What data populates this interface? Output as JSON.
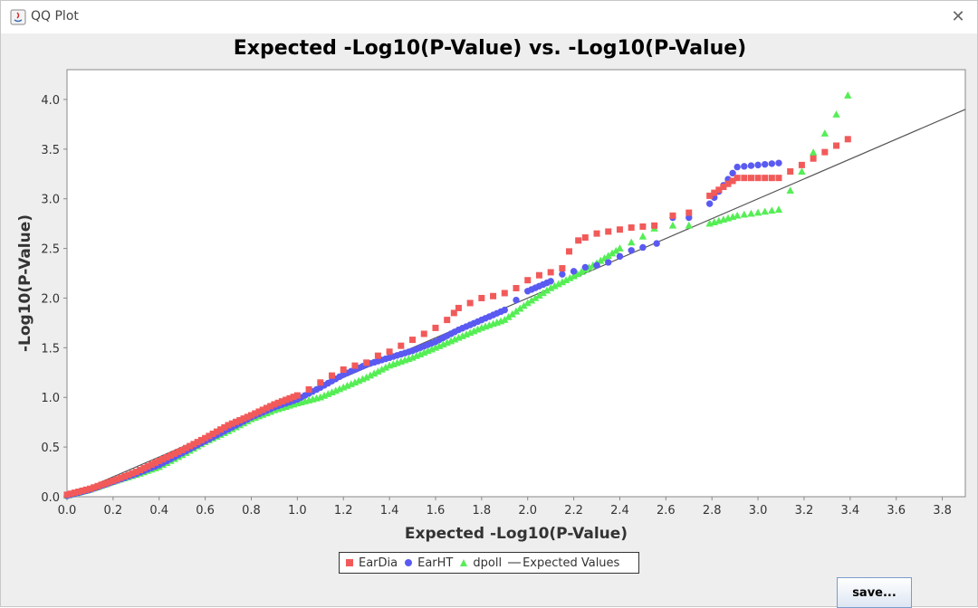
{
  "window": {
    "title": "QQ Plot",
    "close_glyph": "✕",
    "icon": "java-app-icon"
  },
  "save_button": {
    "label": "save..."
  },
  "chart_data": {
    "type": "scatter",
    "title": "Expected -Log10(P-Value) vs. -Log10(P-Value)",
    "xlabel": "Expected -Log10(P-Value)",
    "ylabel": "-Log10(P-Value)",
    "xlim": [
      0,
      3.9
    ],
    "ylim": [
      0,
      4.3
    ],
    "x_ticks": [
      "0.0",
      "0.2",
      "0.4",
      "0.6",
      "0.8",
      "1.0",
      "1.2",
      "1.4",
      "1.6",
      "1.8",
      "2.0",
      "2.2",
      "2.4",
      "2.6",
      "2.8",
      "3.0",
      "3.2",
      "3.4",
      "3.6",
      "3.8"
    ],
    "y_ticks": [
      "0.0",
      "0.5",
      "1.0",
      "1.5",
      "2.0",
      "2.5",
      "3.0",
      "3.5",
      "4.0"
    ],
    "grid": false,
    "legend_position": "bottom-center",
    "series": [
      {
        "name": "EarDia",
        "marker": "square",
        "color": "#f25a5a",
        "points": [
          [
            0,
            0.02
          ],
          [
            0.1,
            0.08
          ],
          [
            0.2,
            0.16
          ],
          [
            0.3,
            0.25
          ],
          [
            0.4,
            0.36
          ],
          [
            0.5,
            0.47
          ],
          [
            0.6,
            0.59
          ],
          [
            0.7,
            0.72
          ],
          [
            0.8,
            0.82
          ],
          [
            0.9,
            0.93
          ],
          [
            1.0,
            1.02
          ],
          [
            1.05,
            1.08
          ],
          [
            1.1,
            1.15
          ],
          [
            1.15,
            1.22
          ],
          [
            1.2,
            1.28
          ],
          [
            1.25,
            1.32
          ],
          [
            1.3,
            1.35
          ],
          [
            1.35,
            1.42
          ],
          [
            1.4,
            1.46
          ],
          [
            1.45,
            1.52
          ],
          [
            1.5,
            1.58
          ],
          [
            1.55,
            1.64
          ],
          [
            1.6,
            1.7
          ],
          [
            1.65,
            1.78
          ],
          [
            1.68,
            1.85
          ],
          [
            1.7,
            1.9
          ],
          [
            1.75,
            1.95
          ],
          [
            1.8,
            2.0
          ],
          [
            1.85,
            2.02
          ],
          [
            1.9,
            2.05
          ],
          [
            1.95,
            2.1
          ],
          [
            2.0,
            2.18
          ],
          [
            2.05,
            2.23
          ],
          [
            2.1,
            2.26
          ],
          [
            2.15,
            2.3
          ],
          [
            2.18,
            2.47
          ],
          [
            2.22,
            2.58
          ],
          [
            2.25,
            2.61
          ],
          [
            2.3,
            2.65
          ],
          [
            2.35,
            2.67
          ],
          [
            2.4,
            2.69
          ],
          [
            2.45,
            2.71
          ],
          [
            2.5,
            2.72
          ],
          [
            2.55,
            2.73
          ],
          [
            2.63,
            2.83
          ],
          [
            2.7,
            2.86
          ],
          [
            2.79,
            3.03
          ],
          [
            2.91,
            3.21
          ],
          [
            3.09,
            3.21
          ],
          [
            3.39,
            3.6
          ]
        ]
      },
      {
        "name": "EarHT",
        "marker": "circle",
        "color": "#5a5af2",
        "points": [
          [
            0,
            0.01
          ],
          [
            0.1,
            0.07
          ],
          [
            0.2,
            0.15
          ],
          [
            0.3,
            0.23
          ],
          [
            0.4,
            0.32
          ],
          [
            0.5,
            0.44
          ],
          [
            0.6,
            0.56
          ],
          [
            0.7,
            0.68
          ],
          [
            0.8,
            0.8
          ],
          [
            0.9,
            0.9
          ],
          [
            1.0,
            0.98
          ],
          [
            1.1,
            1.1
          ],
          [
            1.2,
            1.23
          ],
          [
            1.3,
            1.33
          ],
          [
            1.4,
            1.4
          ],
          [
            1.5,
            1.47
          ],
          [
            1.6,
            1.56
          ],
          [
            1.7,
            1.68
          ],
          [
            1.8,
            1.78
          ],
          [
            1.9,
            1.88
          ],
          [
            1.95,
            1.98
          ],
          [
            2.0,
            2.07
          ],
          [
            2.1,
            2.17
          ],
          [
            2.15,
            2.24
          ],
          [
            2.2,
            2.27
          ],
          [
            2.25,
            2.31
          ],
          [
            2.3,
            2.33
          ],
          [
            2.35,
            2.36
          ],
          [
            2.4,
            2.42
          ],
          [
            2.45,
            2.48
          ],
          [
            2.5,
            2.51
          ],
          [
            2.56,
            2.55
          ],
          [
            2.63,
            2.81
          ],
          [
            2.7,
            2.81
          ],
          [
            2.79,
            2.95
          ],
          [
            2.91,
            3.32
          ],
          [
            3.09,
            3.36
          ]
        ]
      },
      {
        "name": "dpoll",
        "marker": "triangle",
        "color": "#55ee55",
        "points": [
          [
            0,
            0.01
          ],
          [
            0.1,
            0.07
          ],
          [
            0.2,
            0.15
          ],
          [
            0.3,
            0.22
          ],
          [
            0.4,
            0.3
          ],
          [
            0.5,
            0.42
          ],
          [
            0.6,
            0.55
          ],
          [
            0.7,
            0.66
          ],
          [
            0.8,
            0.78
          ],
          [
            0.9,
            0.87
          ],
          [
            1.0,
            0.94
          ],
          [
            1.1,
            1.0
          ],
          [
            1.2,
            1.1
          ],
          [
            1.3,
            1.2
          ],
          [
            1.4,
            1.32
          ],
          [
            1.5,
            1.4
          ],
          [
            1.6,
            1.5
          ],
          [
            1.7,
            1.6
          ],
          [
            1.8,
            1.7
          ],
          [
            1.9,
            1.78
          ],
          [
            2.0,
            1.95
          ],
          [
            2.1,
            2.1
          ],
          [
            2.2,
            2.22
          ],
          [
            2.3,
            2.35
          ],
          [
            2.4,
            2.5
          ],
          [
            2.45,
            2.56
          ],
          [
            2.5,
            2.62
          ],
          [
            2.55,
            2.7
          ],
          [
            2.63,
            2.73
          ],
          [
            2.7,
            2.73
          ],
          [
            2.79,
            2.75
          ],
          [
            2.91,
            2.83
          ],
          [
            3.09,
            2.89
          ],
          [
            3.39,
            4.04
          ]
        ]
      },
      {
        "name": "Expected Values",
        "marker": "line",
        "color": "#555555",
        "points": [
          [
            0,
            0
          ],
          [
            3.9,
            3.9
          ]
        ]
      }
    ]
  }
}
